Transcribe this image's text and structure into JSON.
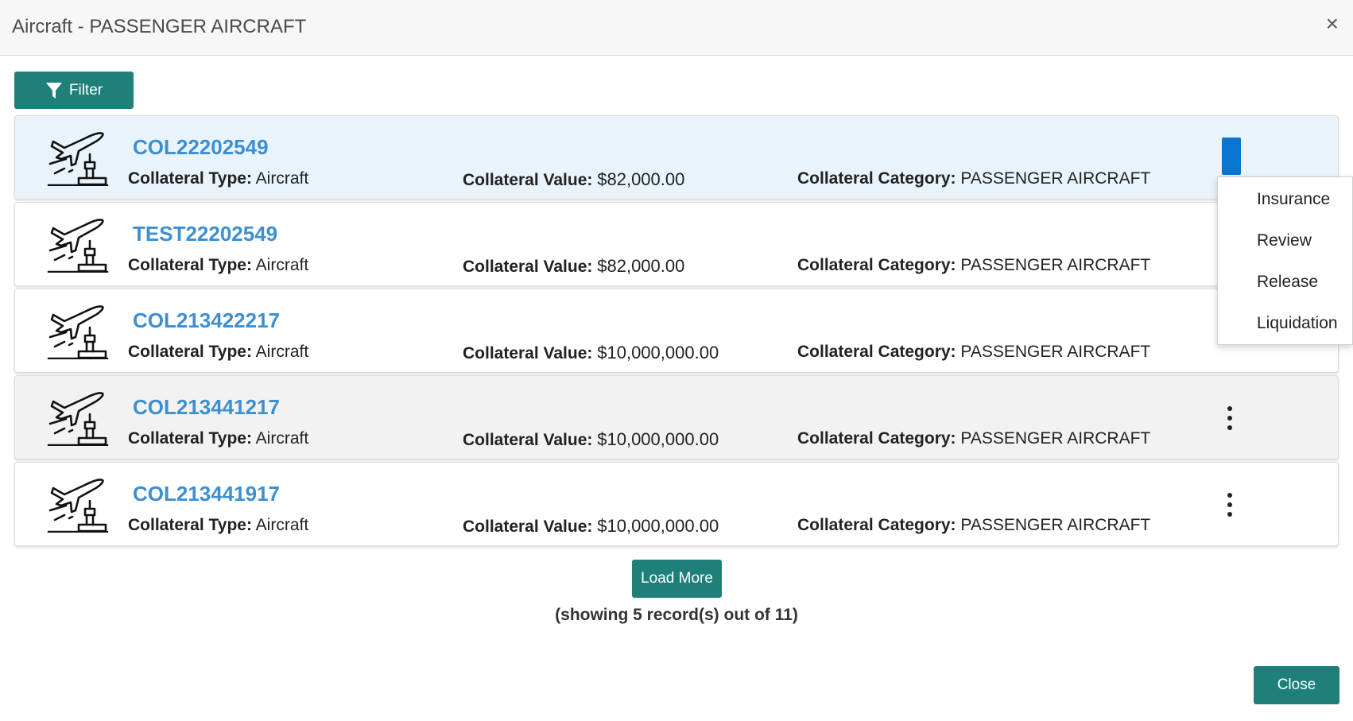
{
  "header": {
    "title": "Aircraft - PASSENGER AIRCRAFT",
    "close_glyph": "×"
  },
  "toolbar": {
    "filter_label": "Filter",
    "filter_icon": "filter-icon"
  },
  "labels": {
    "type": "Collateral Type:",
    "value": "Collateral Value:",
    "category": "Collateral Category:"
  },
  "records": [
    {
      "id": "COL22202549",
      "type": "Aircraft",
      "value": "$82,000.00",
      "category": "PASSENGER AIRCRAFT"
    },
    {
      "id": "TEST22202549",
      "type": "Aircraft",
      "value": "$82,000.00",
      "category": "PASSENGER AIRCRAFT"
    },
    {
      "id": "COL213422217",
      "type": "Aircraft",
      "value": "$10,000,000.00",
      "category": "PASSENGER AIRCRAFT"
    },
    {
      "id": "COL213441217",
      "type": "Aircraft",
      "value": "$10,000,000.00",
      "category": "PASSENGER AIRCRAFT"
    },
    {
      "id": "COL213441917",
      "type": "Aircraft",
      "value": "$10,000,000.00",
      "category": "PASSENGER AIRCRAFT"
    }
  ],
  "menu": {
    "items": [
      "Insurance",
      "Review",
      "Release",
      "Liquidation"
    ]
  },
  "footer": {
    "load_more": "Load More",
    "showing": "(showing 5 record(s) out of 11)",
    "close": "Close"
  },
  "colors": {
    "accent": "#1e8079",
    "link": "#3d8fd1",
    "menu_trigger": "#0a74d1",
    "selected_row": "#e9f3fb"
  }
}
